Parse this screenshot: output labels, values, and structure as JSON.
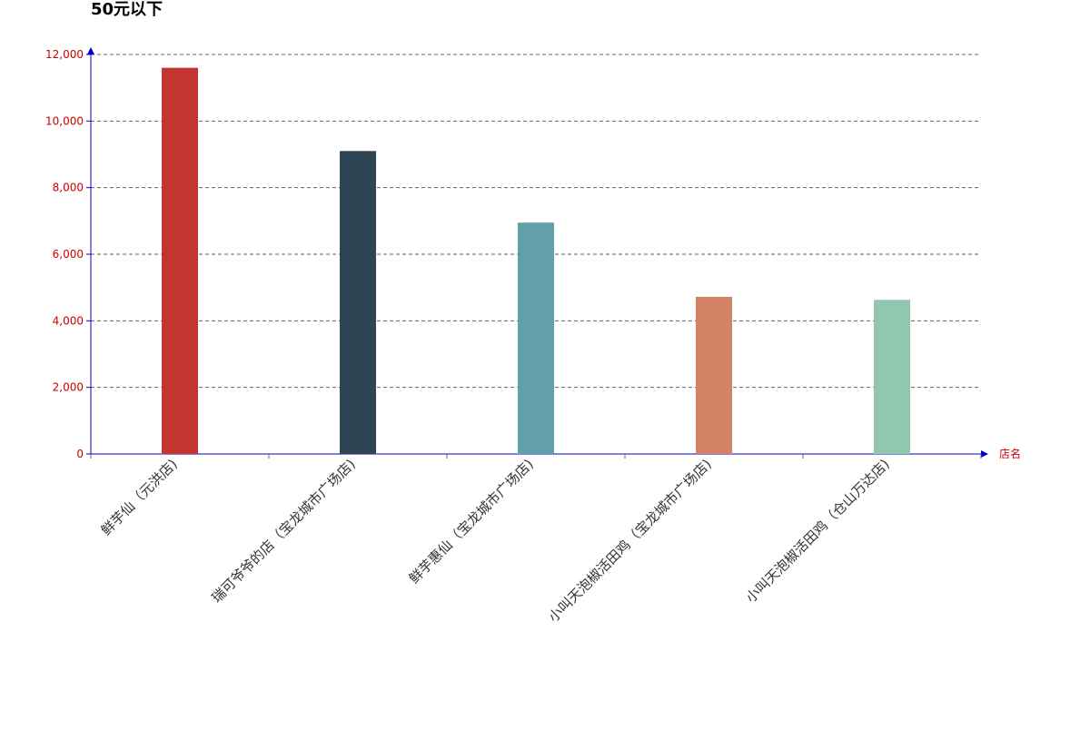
{
  "chart_data": {
    "type": "bar",
    "title": "50元以下",
    "xlabel": "店名",
    "ylabel": "",
    "categories": [
      "鲜芋仙（元洪店)",
      "瑞可爷爷的店（宝龙城市广场店)",
      "鲜芋惠仙（宝龙城市广场店)",
      "小叫天泡椒活田鸡（宝龙城市广场店)",
      "小叫天泡椒活田鸡（仓山万达店)"
    ],
    "values": [
      11600,
      9100,
      6950,
      4720,
      4630
    ],
    "colors": [
      "#c23531",
      "#2f4554",
      "#61a0a8",
      "#d48265",
      "#91c7ae"
    ],
    "ylim": [
      0,
      12000
    ],
    "yticks": [
      "0",
      "2,000",
      "4,000",
      "6,000",
      "8,000",
      "10,000",
      "12,000"
    ],
    "grid": true,
    "axis_color": "#0000cc",
    "tick_label_color": "#cc0000",
    "category_label_color": "#333333"
  }
}
